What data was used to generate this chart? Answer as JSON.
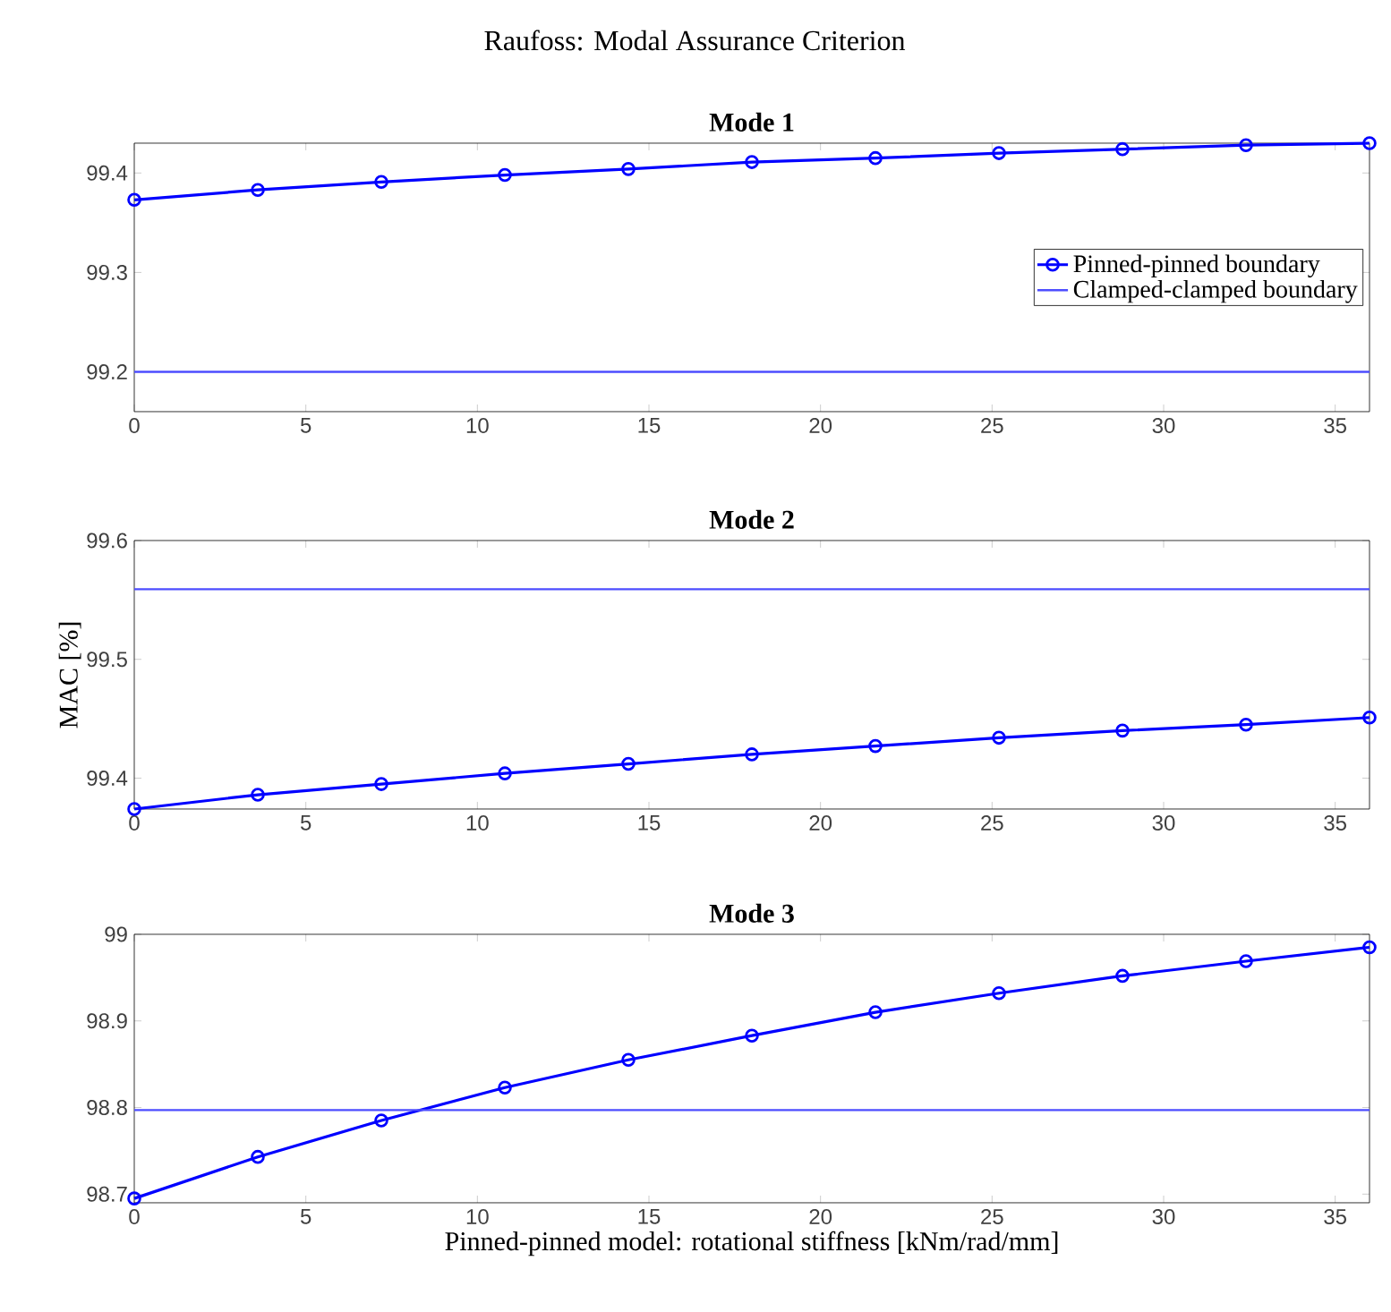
{
  "chart_data": [
    {
      "type": "line",
      "title": "Raufoss: Modal Assurance Criterion",
      "subtitle": "Mode 1",
      "xlim": [
        0,
        36
      ],
      "xticks": [
        0,
        5,
        10,
        15,
        20,
        25,
        30,
        35
      ],
      "ylim": [
        99.16,
        99.43
      ],
      "yticks": [
        99.2,
        99.3,
        99.4
      ],
      "legend": "right",
      "series": [
        {
          "name": "Pinned-pinned boundary",
          "color": "#0000ff",
          "marker": "circle",
          "x": [
            0,
            3.6,
            7.2,
            10.8,
            14.4,
            18,
            21.6,
            25.2,
            28.8,
            32.4,
            36
          ],
          "values": [
            99.373,
            99.383,
            99.391,
            99.398,
            99.404,
            99.411,
            99.415,
            99.42,
            99.424,
            99.428,
            99.43
          ]
        },
        {
          "name": "Clamped-clamped boundary",
          "color": "#4d4dff",
          "marker": "none",
          "x": [
            0,
            36
          ],
          "values": [
            99.2,
            99.2
          ]
        }
      ]
    },
    {
      "type": "line",
      "title": "Mode 2",
      "ylabel": "MAC [%]",
      "xlim": [
        0,
        36
      ],
      "xticks": [
        0,
        5,
        10,
        15,
        20,
        25,
        30,
        35
      ],
      "ylim": [
        99.374,
        99.6
      ],
      "yticks": [
        99.4,
        99.5,
        99.6
      ],
      "series": [
        {
          "color": "#0000ff",
          "marker": "circle",
          "x": [
            0,
            3.6,
            7.2,
            10.8,
            14.4,
            18,
            21.6,
            25.2,
            28.8,
            32.4,
            36
          ],
          "values": [
            99.374,
            99.386,
            99.395,
            99.404,
            99.412,
            99.42,
            99.427,
            99.434,
            99.44,
            99.445,
            99.451
          ]
        },
        {
          "color": "#4d4dff",
          "marker": "none",
          "x": [
            0,
            36
          ],
          "values": [
            99.559,
            99.559
          ]
        }
      ]
    },
    {
      "type": "line",
      "title": "Mode 3",
      "xlabel": "Pinned-pinned model: rotational stiffness [kNm/rad/mm]",
      "xlim": [
        0,
        36
      ],
      "xticks": [
        0,
        5,
        10,
        15,
        20,
        25,
        30,
        35
      ],
      "ylim": [
        98.69,
        99
      ],
      "yticks": [
        98.7,
        98.8,
        98.9,
        99
      ],
      "series": [
        {
          "color": "#0000ff",
          "marker": "circle",
          "x": [
            0,
            3.6,
            7.2,
            10.8,
            14.4,
            18,
            21.6,
            25.2,
            28.8,
            32.4,
            36
          ],
          "values": [
            98.695,
            98.743,
            98.785,
            98.823,
            98.855,
            98.883,
            98.91,
            98.932,
            98.952,
            98.969,
            98.985
          ]
        },
        {
          "color": "#4d4dff",
          "marker": "none",
          "x": [
            0,
            36
          ],
          "values": [
            98.797,
            98.797
          ]
        }
      ]
    }
  ]
}
